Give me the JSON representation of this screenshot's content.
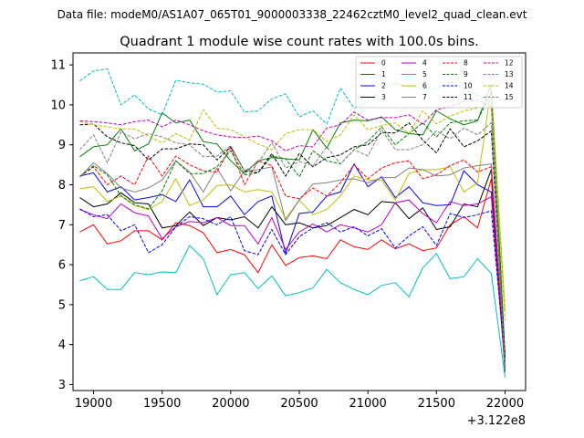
{
  "chart_data": {
    "type": "line",
    "suptitle": "Data file: modeM0/AS1A07_065T01_9000003338_22462cztM0_level2_quad_clean.evt",
    "title": "Quadrant 1 module wise count rates with 100.0s bins.",
    "xlabel": "",
    "ylabel": "",
    "offset_label": "+3.122e8",
    "xlim": [
      18850,
      22150
    ],
    "ylim": [
      2.85,
      11.3
    ],
    "xticks": [
      19000,
      19500,
      20000,
      20500,
      21000,
      21500,
      22000
    ],
    "xtick_labels": [
      "19000",
      "19500",
      "20000",
      "20500",
      "21000",
      "21500",
      "22000"
    ],
    "yticks": [
      3,
      4,
      5,
      6,
      7,
      8,
      9,
      10,
      11
    ],
    "ytick_labels": [
      "3",
      "4",
      "5",
      "6",
      "7",
      "8",
      "9",
      "10",
      "11"
    ],
    "grid": false,
    "legend_position": "top-right",
    "x": [
      18900,
      19000,
      19100,
      19200,
      19300,
      19400,
      19500,
      19600,
      19700,
      19800,
      19900,
      20000,
      20100,
      20200,
      20300,
      20400,
      20500,
      20600,
      20700,
      20800,
      20900,
      21000,
      21100,
      21200,
      21300,
      21400,
      21500,
      21600,
      21700,
      21800,
      21900,
      22000
    ],
    "series": [
      {
        "name": "0",
        "color": "#ff0000",
        "dash": "solid",
        "values": [
          6.82,
          7.0,
          6.52,
          6.6,
          6.85,
          6.85,
          6.62,
          7.05,
          6.98,
          6.8,
          6.3,
          6.38,
          6.25,
          5.8,
          6.5,
          5.98,
          6.18,
          6.22,
          6.15,
          6.62,
          6.45,
          6.38,
          6.62,
          6.4,
          6.52,
          6.35,
          6.42,
          7.0,
          7.2,
          6.92,
          8.15,
          3.3
        ]
      },
      {
        "name": "1",
        "color": "#008000",
        "dash": "solid",
        "values": [
          8.7,
          8.95,
          9.0,
          9.4,
          8.85,
          9.02,
          9.8,
          9.55,
          9.62,
          9.08,
          9.02,
          8.6,
          8.28,
          8.6,
          8.68,
          8.65,
          8.62,
          9.38,
          8.92,
          9.55,
          9.62,
          9.6,
          9.7,
          9.38,
          9.28,
          9.25,
          9.85,
          9.65,
          9.5,
          9.6,
          10.52,
          3.7
        ]
      },
      {
        "name": "2",
        "color": "#0000ff",
        "dash": "solid",
        "values": [
          8.22,
          8.3,
          7.82,
          7.95,
          7.62,
          7.68,
          7.75,
          7.58,
          8.12,
          7.45,
          7.45,
          7.72,
          7.25,
          7.58,
          7.72,
          6.28,
          7.28,
          7.32,
          7.72,
          7.82,
          8.52,
          7.95,
          8.2,
          7.68,
          7.95,
          7.55,
          7.48,
          7.5,
          8.35,
          8.0,
          7.82,
          3.5
        ]
      },
      {
        "name": "3",
        "color": "#000000",
        "dash": "solid",
        "values": [
          7.68,
          7.45,
          7.52,
          7.8,
          7.55,
          7.52,
          6.92,
          6.98,
          7.32,
          6.98,
          7.18,
          7.12,
          7.2,
          6.92,
          7.45,
          7.0,
          7.05,
          6.92,
          6.98,
          7.18,
          7.38,
          7.25,
          7.58,
          7.55,
          7.15,
          7.42,
          6.88,
          6.95,
          7.52,
          7.45,
          8.38,
          3.35
        ]
      },
      {
        "name": "4",
        "color": "#bf00bf",
        "dash": "solid",
        "values": [
          7.38,
          7.25,
          7.15,
          7.52,
          7.3,
          7.22,
          6.65,
          6.95,
          7.08,
          7.05,
          7.18,
          6.98,
          6.98,
          6.52,
          7.18,
          6.38,
          6.82,
          7.02,
          6.82,
          7.0,
          6.92,
          6.82,
          7.0,
          7.55,
          7.62,
          7.28,
          7.05,
          7.58,
          7.48,
          7.52,
          7.7,
          3.4
        ]
      },
      {
        "name": "5",
        "color": "#00bfbf",
        "dash": "solid",
        "values": [
          5.6,
          5.7,
          5.38,
          5.38,
          5.8,
          5.75,
          5.82,
          5.8,
          6.48,
          6.15,
          5.25,
          5.75,
          5.8,
          5.4,
          5.72,
          5.22,
          5.3,
          5.42,
          5.88,
          5.55,
          5.38,
          5.25,
          5.48,
          5.55,
          5.2,
          5.92,
          6.28,
          5.65,
          5.7,
          6.15,
          5.78,
          3.18
        ]
      },
      {
        "name": "6",
        "color": "#bfbf00",
        "dash": "solid",
        "values": [
          7.9,
          7.95,
          7.58,
          7.72,
          7.48,
          7.38,
          7.58,
          8.15,
          7.48,
          7.62,
          7.98,
          8.0,
          7.82,
          7.88,
          7.82,
          7.15,
          7.62,
          7.25,
          7.38,
          7.72,
          8.22,
          8.12,
          8.12,
          7.62,
          8.28,
          8.38,
          8.38,
          8.45,
          7.82,
          8.05,
          10.45,
          4.85
        ]
      },
      {
        "name": "7",
        "color": "#808080",
        "dash": "solid",
        "values": [
          8.2,
          8.55,
          8.28,
          7.92,
          7.82,
          7.92,
          8.12,
          8.6,
          8.32,
          7.82,
          8.42,
          7.85,
          8.35,
          8.38,
          8.45,
          7.1,
          7.62,
          8.02,
          8.05,
          8.12,
          8.15,
          8.05,
          8.18,
          8.18,
          8.42,
          8.38,
          8.22,
          8.25,
          8.42,
          8.48,
          8.52,
          3.55
        ]
      },
      {
        "name": "8",
        "color": "#ff0000",
        "dash": "dashed",
        "values": [
          8.2,
          8.45,
          8.0,
          8.22,
          8.0,
          8.72,
          8.22,
          8.72,
          8.5,
          8.35,
          8.32,
          8.95,
          8.0,
          8.6,
          8.48,
          7.72,
          7.65,
          7.92,
          7.72,
          8.05,
          8.5,
          8.15,
          8.42,
          8.55,
          8.6,
          8.15,
          8.25,
          8.48,
          8.62,
          8.32,
          8.45,
          3.3
        ]
      },
      {
        "name": "9",
        "color": "#008000",
        "dash": "dashed",
        "values": [
          8.2,
          8.48,
          8.25,
          7.72,
          7.5,
          7.4,
          7.85,
          8.6,
          8.28,
          8.28,
          8.45,
          8.85,
          8.25,
          8.3,
          8.72,
          8.65,
          8.2,
          8.85,
          8.6,
          8.52,
          8.88,
          9.08,
          9.45,
          9.0,
          9.28,
          9.55,
          9.2,
          9.55,
          9.6,
          9.62,
          10.3,
          3.72
        ]
      },
      {
        "name": "10",
        "color": "#0000ff",
        "dash": "dashed",
        "values": [
          7.4,
          7.2,
          7.25,
          6.85,
          7.0,
          6.3,
          6.5,
          6.95,
          7.2,
          7.15,
          7.0,
          7.2,
          6.35,
          6.25,
          6.88,
          6.25,
          6.7,
          6.92,
          7.05,
          6.82,
          6.95,
          6.72,
          6.9,
          6.42,
          6.72,
          6.95,
          6.48,
          7.28,
          7.18,
          7.25,
          7.35,
          3.6
        ]
      },
      {
        "name": "11",
        "color": "#000000",
        "dash": "dashed",
        "values": [
          9.5,
          9.52,
          9.2,
          9.05,
          8.98,
          8.62,
          8.9,
          8.9,
          9.02,
          9.0,
          8.62,
          8.95,
          8.35,
          8.3,
          8.78,
          8.22,
          8.78,
          8.45,
          8.68,
          8.75,
          8.95,
          9.0,
          9.3,
          9.3,
          9.55,
          9.12,
          8.8,
          9.4,
          8.95,
          9.1,
          9.35,
          3.65
        ]
      },
      {
        "name": "12",
        "color": "#bf00bf",
        "dash": "dashed",
        "values": [
          9.6,
          9.58,
          9.55,
          9.5,
          9.58,
          9.62,
          9.45,
          9.62,
          9.5,
          9.35,
          9.25,
          9.2,
          9.18,
          9.22,
          9.1,
          8.85,
          8.98,
          8.95,
          9.42,
          9.5,
          9.82,
          9.62,
          9.68,
          9.68,
          9.75,
          9.52,
          9.88,
          9.95,
          10.08,
          10.12,
          9.95,
          3.3
        ]
      },
      {
        "name": "13",
        "color": "#00bfbf",
        "dash": "dashed",
        "values": [
          10.6,
          10.85,
          10.9,
          10.0,
          10.25,
          9.9,
          9.75,
          10.62,
          10.55,
          10.52,
          10.32,
          10.35,
          9.82,
          9.85,
          10.15,
          10.28,
          9.7,
          9.85,
          9.52,
          10.42,
          9.92,
          10.08,
          10.38,
          10.55,
          10.45,
          10.42,
          10.4,
          10.58,
          10.4,
          10.25,
          10.05,
          3.3
        ]
      },
      {
        "name": "14",
        "color": "#bfbf00",
        "dash": "dashed",
        "values": [
          9.58,
          9.5,
          9.45,
          9.4,
          9.4,
          9.22,
          9.05,
          9.28,
          9.12,
          9.88,
          9.42,
          9.38,
          9.2,
          9.02,
          8.88,
          9.28,
          9.38,
          9.38,
          9.08,
          9.25,
          9.75,
          9.38,
          9.48,
          9.55,
          9.28,
          9.85,
          9.52,
          9.72,
          9.85,
          9.92,
          10.02,
          4.6
        ]
      },
      {
        "name": "15",
        "color": "#808080",
        "dash": "dashed",
        "values": [
          8.88,
          9.25,
          8.55,
          9.32,
          9.15,
          9.28,
          9.2,
          9.05,
          9.0,
          8.7,
          8.72,
          8.98,
          8.35,
          8.55,
          9.05,
          8.42,
          8.58,
          8.48,
          8.95,
          8.52,
          8.88,
          8.72,
          9.38,
          8.88,
          8.88,
          9.0,
          9.35,
          9.15,
          9.42,
          9.25,
          9.55,
          3.52
        ]
      }
    ]
  }
}
